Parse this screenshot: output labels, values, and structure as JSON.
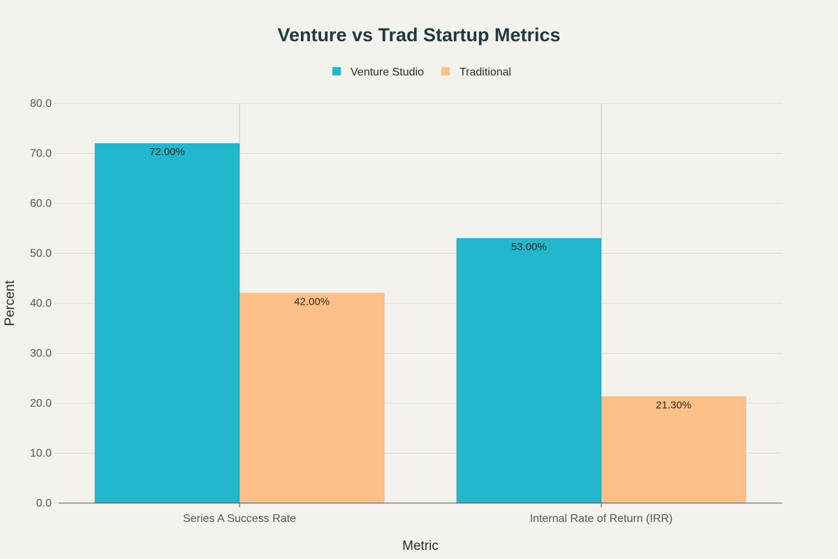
{
  "chart_data": {
    "type": "bar",
    "title": "Venture vs Trad Startup Metrics",
    "xlabel": "Metric",
    "ylabel": "Percent",
    "ylim": [
      0,
      80
    ],
    "yticks": [
      0,
      10,
      20,
      30,
      40,
      50,
      60,
      70,
      80
    ],
    "ytick_labels": [
      "0.0",
      "10.0",
      "20.0",
      "30.0",
      "40.0",
      "50.0",
      "60.0",
      "70.0",
      "80.0"
    ],
    "categories": [
      "Series A Success Rate",
      "Internal Rate of Return (IRR)"
    ],
    "series": [
      {
        "name": "Venture Studio",
        "color": "#22b7cc",
        "values": [
          72.0,
          53.0
        ],
        "labels": [
          "72.00%",
          "53.00%"
        ]
      },
      {
        "name": "Traditional",
        "color": "#fdc088",
        "values": [
          42.0,
          21.3
        ],
        "labels": [
          "42.00%",
          "21.30%"
        ]
      }
    ],
    "legend_position": "top-center",
    "grid": true
  }
}
